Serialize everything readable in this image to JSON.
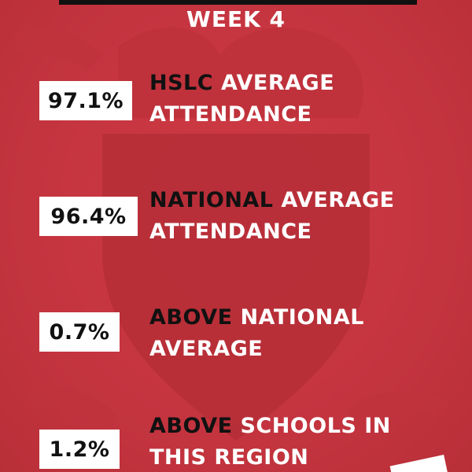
{
  "header": {
    "title": "WEEK 4"
  },
  "stats": [
    {
      "value": "97.1%",
      "emph": "HSLC",
      "line1_rest": "AVERAGE",
      "line2": "ATTENDANCE"
    },
    {
      "value": "96.4%",
      "emph": "NATIONAL",
      "line1_rest": "AVERAGE",
      "line2": "ATTENDANCE"
    },
    {
      "value": "0.7%",
      "emph": "ABOVE",
      "line1_rest": "NATIONAL",
      "line2": "AVERAGE"
    },
    {
      "value": "1.2%",
      "emph": "ABOVE",
      "line1_rest": "SCHOOLS IN",
      "line2": "THIS REGION"
    }
  ],
  "colors": {
    "background": "#c9343d",
    "box": "#ffffff",
    "emphasis_text": "#111111",
    "text": "#ffffff"
  }
}
